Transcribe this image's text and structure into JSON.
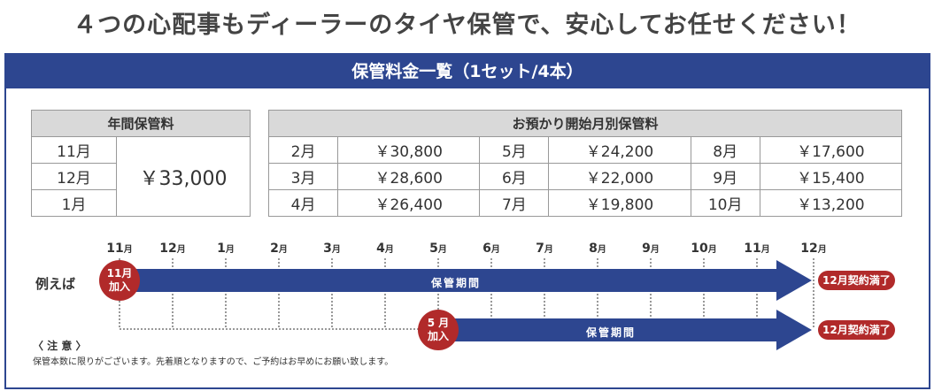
{
  "headline": "４つの心配事もディーラーのタイヤ保管で、安心してお任せください！",
  "panel_title": "保管料金一覧（1セット/4本）",
  "annual": {
    "header": "年間保管料",
    "months": [
      "11月",
      "12月",
      "1月"
    ],
    "price": "￥33,000"
  },
  "by_month": {
    "header": "お預かり開始月別保管料",
    "rows": [
      [
        {
          "m": "2月",
          "p": "￥30,800"
        },
        {
          "m": "5月",
          "p": "￥24,200"
        },
        {
          "m": "8月",
          "p": "￥17,600"
        }
      ],
      [
        {
          "m": "3月",
          "p": "￥28,600"
        },
        {
          "m": "6月",
          "p": "￥22,000"
        },
        {
          "m": "9月",
          "p": "￥15,400"
        }
      ],
      [
        {
          "m": "4月",
          "p": "￥26,400"
        },
        {
          "m": "7月",
          "p": "￥19,800"
        },
        {
          "m": "10月",
          "p": "￥13,200"
        }
      ]
    ]
  },
  "timeline": {
    "labels": [
      {
        "num": "11",
        "unit": "月"
      },
      {
        "num": "12",
        "unit": "月"
      },
      {
        "num": "1",
        "unit": "月"
      },
      {
        "num": "2",
        "unit": "月"
      },
      {
        "num": "3",
        "unit": "月"
      },
      {
        "num": "4",
        "unit": "月"
      },
      {
        "num": "5",
        "unit": "月"
      },
      {
        "num": "6",
        "unit": "月"
      },
      {
        "num": "7",
        "unit": "月"
      },
      {
        "num": "8",
        "unit": "月"
      },
      {
        "num": "9",
        "unit": "月"
      },
      {
        "num": "10",
        "unit": "月"
      },
      {
        "num": "11",
        "unit": "月"
      },
      {
        "num": "12",
        "unit": "月"
      }
    ],
    "example_label": "例えば",
    "bar1": {
      "start_badge_line1": "11月",
      "start_badge_line2": "加入",
      "text": "保管期間",
      "end_badge": "12月契約満了"
    },
    "bar2": {
      "start_badge_line1": "5 月",
      "start_badge_line2": "加入",
      "text": "保管期間",
      "end_badge": "12月契約満了"
    }
  },
  "notes": {
    "title": "〈 注 意 〉",
    "text": "保管本数に限りがございます。先着順となりますので、ご予約はお早めにお願い致します。"
  },
  "colors": {
    "navy": "#2d4690",
    "red": "#b12a2a",
    "header_gray": "#d9d9d9"
  }
}
